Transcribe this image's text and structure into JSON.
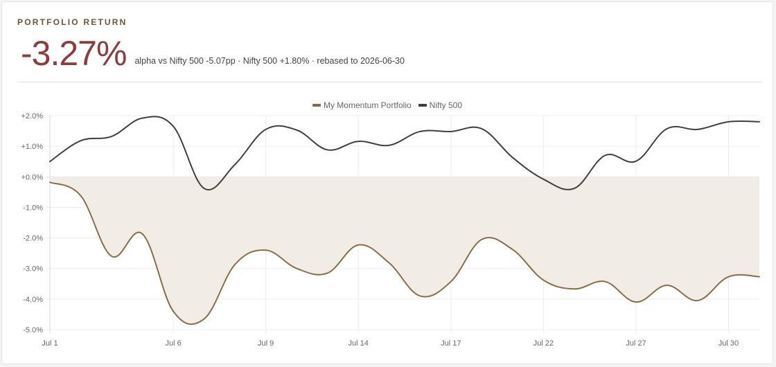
{
  "header": {
    "eyebrow": "PORTFOLIO RETURN",
    "return_value": "-3.27%",
    "meta": "alpha vs Nifty 500 -5.07pp · Nifty 500 +1.80% · rebased to 2026-06-30"
  },
  "chart_data": {
    "type": "line",
    "x": [
      "Jul 1",
      "Jul 2",
      "Jul 3",
      "Jul 4",
      "Jul 6",
      "Jul 7",
      "Jul 8",
      "Jul 9",
      "Jul 10",
      "Jul 13",
      "Jul 14",
      "Jul 15",
      "Jul 16",
      "Jul 17",
      "Jul 20",
      "Jul 21",
      "Jul 22",
      "Jul 23",
      "Jul 24",
      "Jul 27",
      "Jul 28",
      "Jul 29",
      "Jul 30",
      "Jul 31"
    ],
    "x_tick_labels": [
      "Jul 1",
      "Jul 6",
      "Jul 9",
      "Jul 14",
      "Jul 17",
      "Jul 22",
      "Jul 27",
      "Jul 30"
    ],
    "y_tick_labels": [
      "+2.0%",
      "+1.0%",
      "+0.0%",
      "-1.0%",
      "-2.0%",
      "-3.0%",
      "-4.0%",
      "-5.0%"
    ],
    "ylim": [
      -5.0,
      2.0
    ],
    "grid": true,
    "legend_position": "top-center",
    "series": [
      {
        "name": "My Momentum Portfolio",
        "color": "#8a6d48",
        "fill_to_zero": true,
        "fill_color": "#f1ece6",
        "values": [
          -0.18,
          -0.62,
          -2.6,
          -1.87,
          -4.4,
          -4.65,
          -2.87,
          -2.4,
          -3.0,
          -3.15,
          -2.23,
          -2.82,
          -3.9,
          -3.43,
          -2.05,
          -2.38,
          -3.38,
          -3.67,
          -3.43,
          -4.1,
          -3.55,
          -4.05,
          -3.27,
          -3.27
        ]
      },
      {
        "name": "Nifty 500",
        "color": "#3f3f42",
        "fill_to_zero": false,
        "values": [
          0.5,
          1.18,
          1.32,
          1.92,
          1.65,
          -0.38,
          0.4,
          1.55,
          1.53,
          0.88,
          1.16,
          1.03,
          1.48,
          1.48,
          1.57,
          0.63,
          -0.08,
          -0.38,
          0.7,
          0.51,
          1.57,
          1.55,
          1.8,
          1.8
        ]
      }
    ]
  }
}
